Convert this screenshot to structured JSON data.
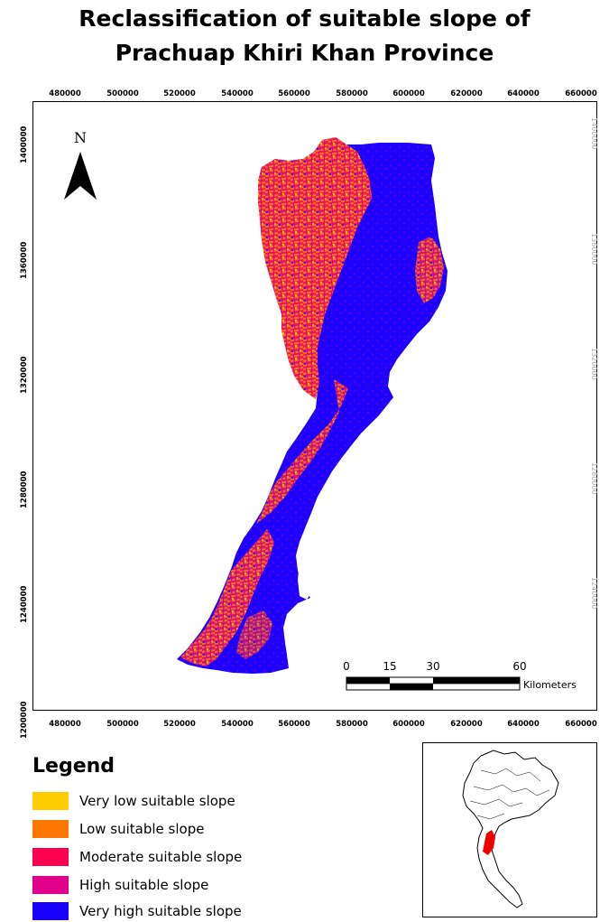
{
  "title": {
    "line1": "Reclassification of suitable slope of",
    "line2": "Prachuap Khiri Khan Province"
  },
  "map": {
    "x_ticks": [
      "480000",
      "500000",
      "520000",
      "540000",
      "560000",
      "580000",
      "600000",
      "620000",
      "640000",
      "660000"
    ],
    "y_ticks": [
      "1400000",
      "1360000",
      "1320000",
      "1280000",
      "1240000",
      "1200000"
    ],
    "north_label": "N",
    "scale_bar": {
      "labels": [
        "0",
        "15",
        "30",
        "60"
      ],
      "unit": "Kilometers"
    }
  },
  "legend": {
    "title": "Legend",
    "items": [
      {
        "label": "Very low suitable slope",
        "color": "#ffcc00"
      },
      {
        "label": "Low suitable slope",
        "color": "#ff7700"
      },
      {
        "label": "Moderate suitable slope",
        "color": "#ff0050"
      },
      {
        "label": "High suitable slope",
        "color": "#e0008a"
      },
      {
        "label": "Very high suitable slope",
        "color": "#1a00ff"
      }
    ]
  },
  "inset": {
    "highlight_color": "#ee0000"
  }
}
